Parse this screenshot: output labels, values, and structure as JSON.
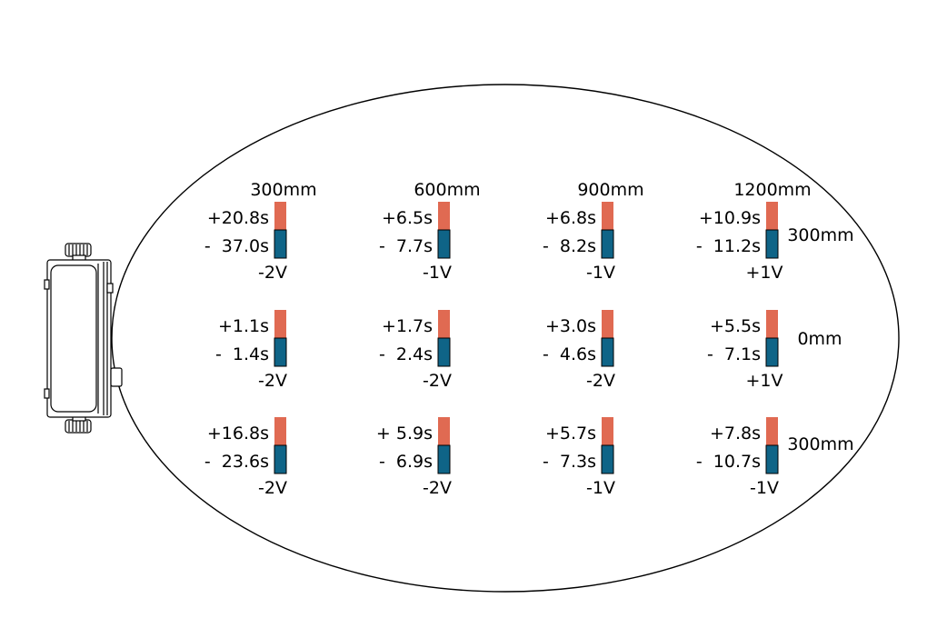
{
  "colors": {
    "upper_bar": "#e06a52",
    "lower_bar": "#0f6487",
    "outline": "#000000"
  },
  "column_labels": [
    "300mm",
    "600mm",
    "900mm",
    "1200mm"
  ],
  "row_labels": [
    "300mm",
    "0mm",
    "300mm"
  ],
  "cells": [
    [
      {
        "plus": "+20.8s",
        "minus": "-  37.0s",
        "voltage": "-2V"
      },
      {
        "plus": "+6.5s",
        "minus": "-  7.7s",
        "voltage": "-1V"
      },
      {
        "plus": "+6.8s",
        "minus": "-  8.2s",
        "voltage": "-1V"
      },
      {
        "plus": "+10.9s",
        "minus": "-  11.2s",
        "voltage": "+1V"
      }
    ],
    [
      {
        "plus": "+1.1s",
        "minus": "-  1.4s",
        "voltage": "-2V"
      },
      {
        "plus": "+1.7s",
        "minus": "-  2.4s",
        "voltage": "-2V"
      },
      {
        "plus": "+3.0s",
        "minus": "-  4.6s",
        "voltage": "-2V"
      },
      {
        "plus": "+5.5s",
        "minus": "-  7.1s",
        "voltage": "+1V"
      }
    ],
    [
      {
        "plus": "+16.8s",
        "minus": "-  23.6s",
        "voltage": "-2V"
      },
      {
        "plus": "+ 5.9s",
        "minus": "-  6.9s",
        "voltage": "-2V"
      },
      {
        "plus": "+5.7s",
        "minus": "-  7.3s",
        "voltage": "-1V"
      },
      {
        "plus": "+7.8s",
        "minus": "-  10.7s",
        "voltage": "-1V"
      }
    ]
  ]
}
